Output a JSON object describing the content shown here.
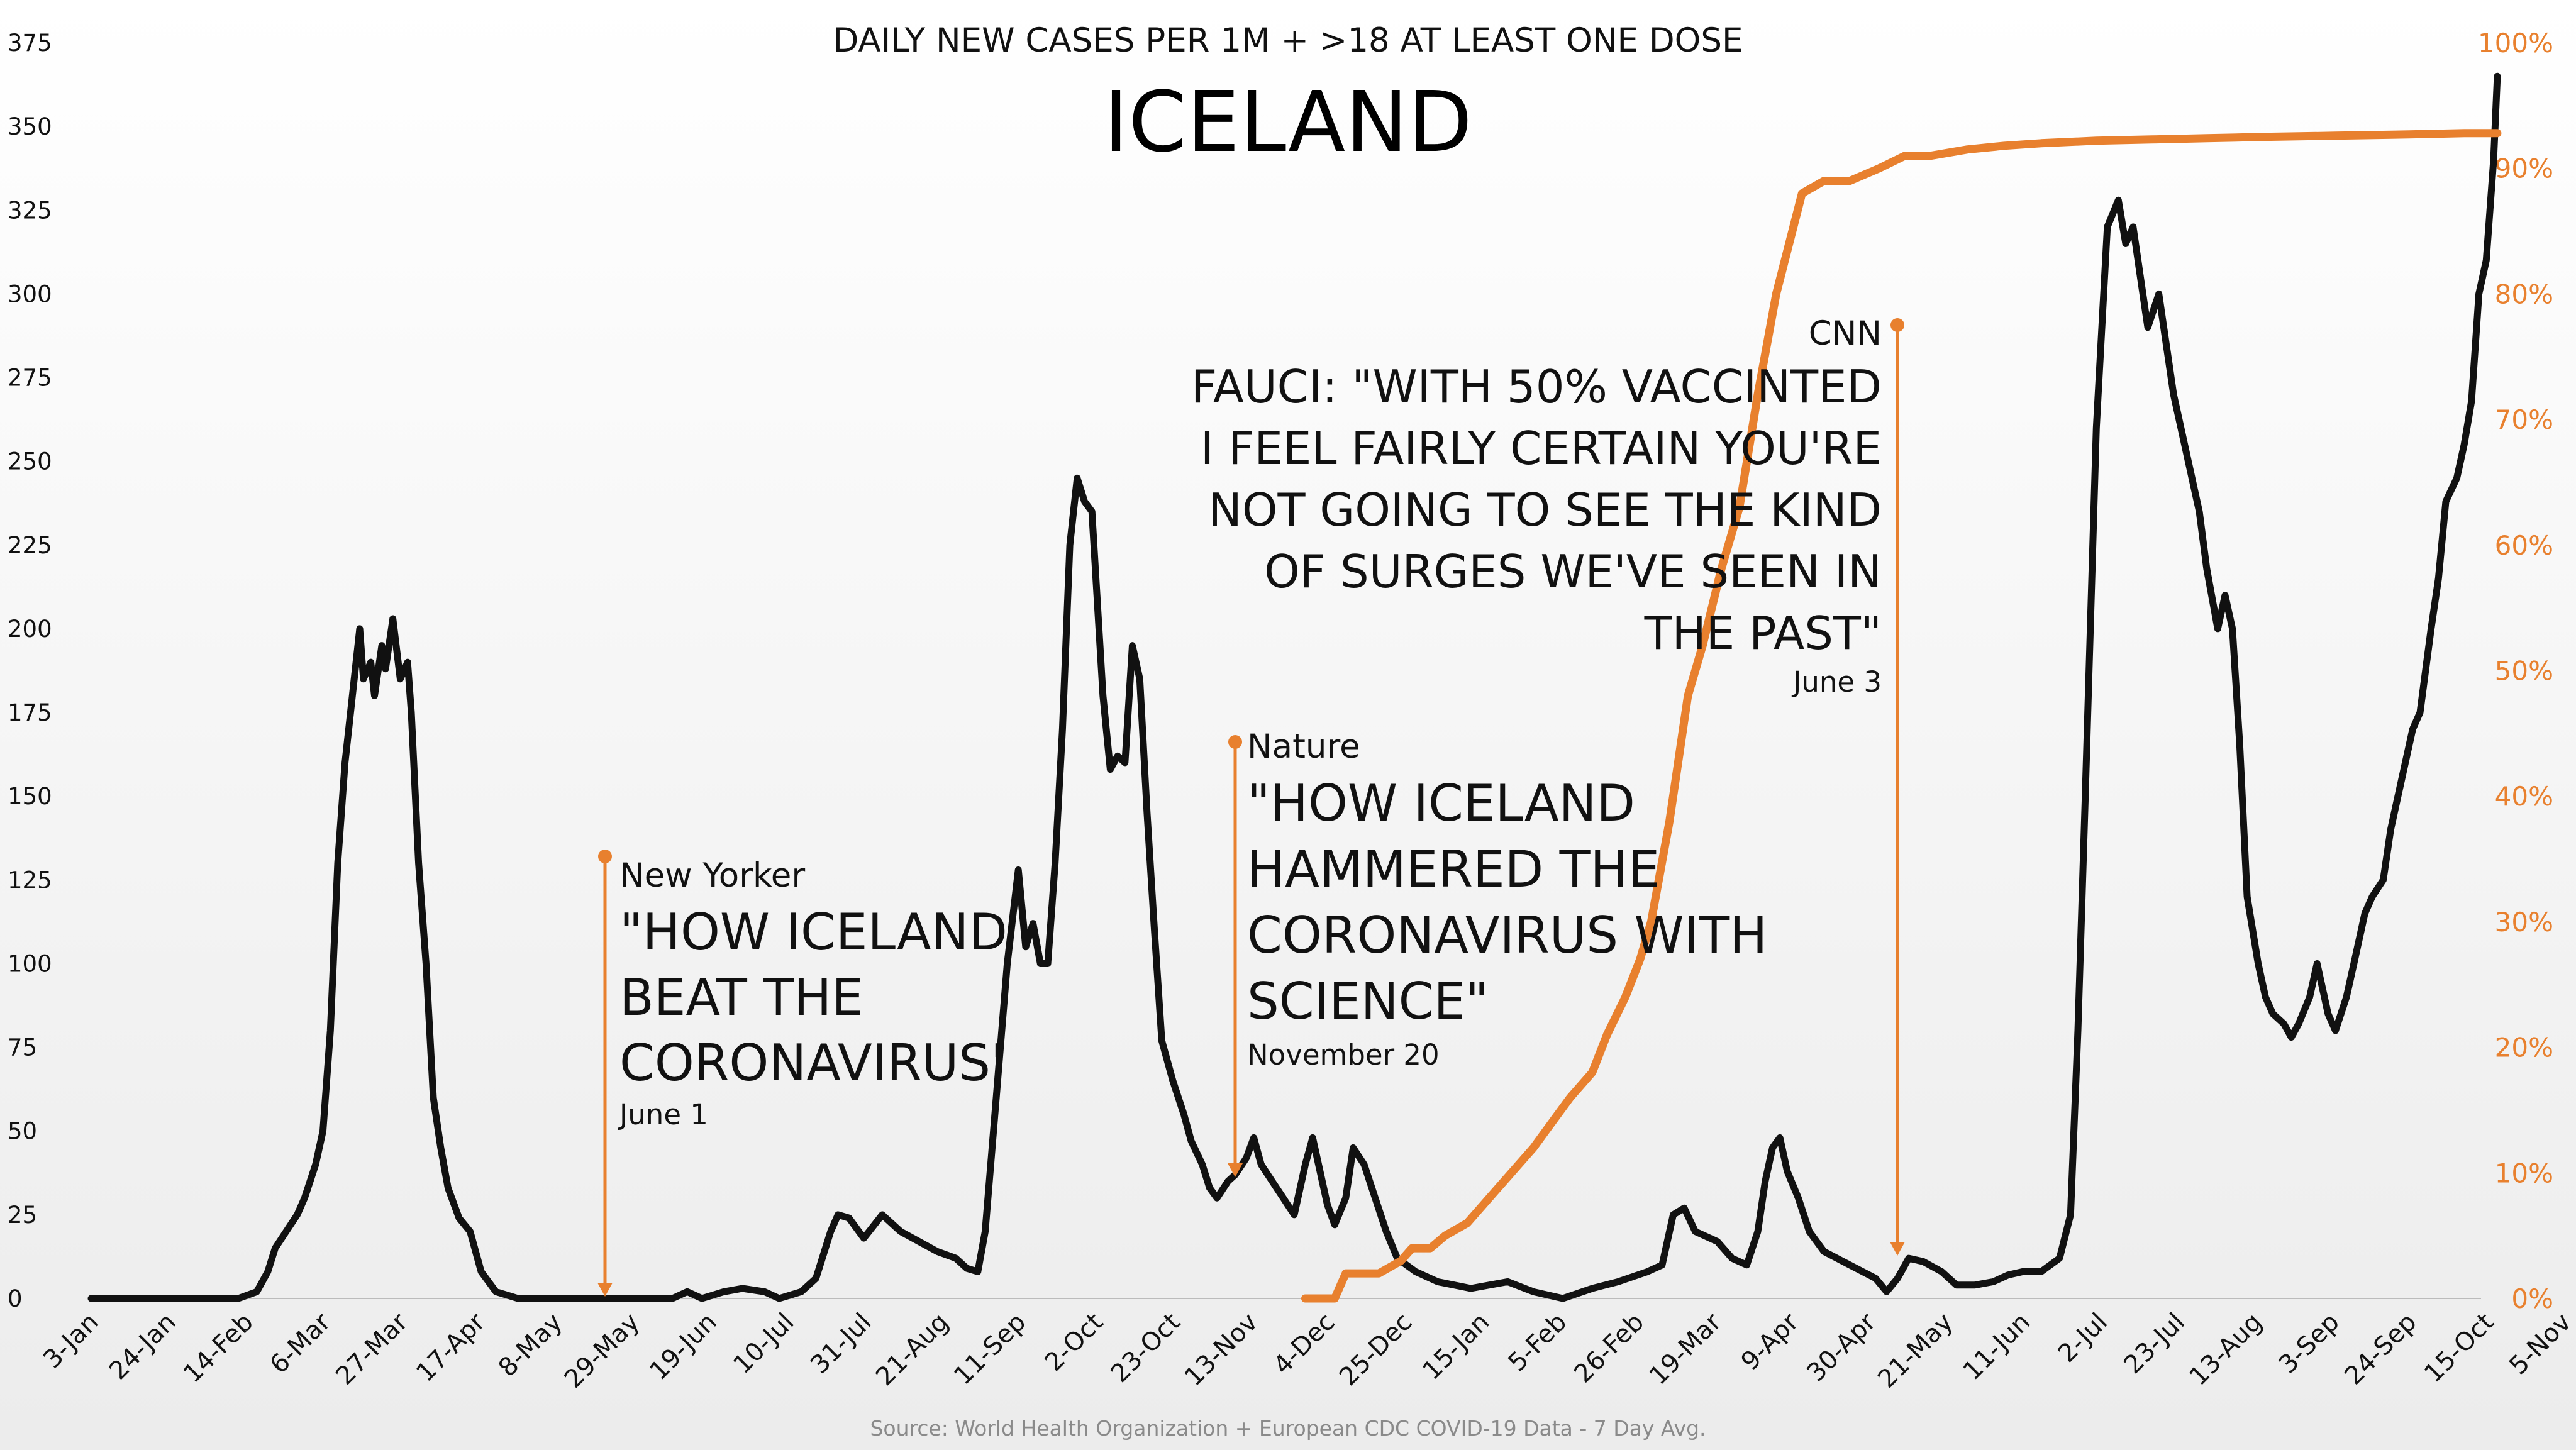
{
  "chart_data": {
    "type": "line",
    "subtitle": "DAILY NEW CASES PER 1M + >18 AT LEAST ONE DOSE",
    "title": "ICELAND",
    "source": "Source: World Health Organization + European CDC COVID-19 Data - 7 Day Avg.",
    "x_ticks": [
      "3-Jan",
      "24-Jan",
      "14-Feb",
      "6-Mar",
      "27-Mar",
      "17-Apr",
      "8-May",
      "29-May",
      "19-Jun",
      "10-Jul",
      "31-Jul",
      "21-Aug",
      "11-Sep",
      "2-Oct",
      "23-Oct",
      "13-Nov",
      "4-Dec",
      "25-Dec",
      "15-Jan",
      "5-Feb",
      "26-Feb",
      "19-Mar",
      "9-Apr",
      "30-Apr",
      "21-May",
      "11-Jun",
      "2-Jul",
      "23-Jul",
      "13-Aug",
      "3-Sep",
      "24-Sep",
      "15-Oct",
      "5-Nov"
    ],
    "y_left": {
      "min": 0,
      "max": 375,
      "ticks": [
        "0",
        "25",
        "50",
        "75",
        "100",
        "125",
        "150",
        "175",
        "200",
        "225",
        "250",
        "275",
        "300",
        "325",
        "350",
        "375"
      ]
    },
    "y_right": {
      "min": 0,
      "max": 100,
      "ticks": [
        "0%",
        "10%",
        "20%",
        "30%",
        "40%",
        "50%",
        "60%",
        "70%",
        "80%",
        "90%",
        "100%"
      ]
    },
    "series": [
      {
        "axis": "left",
        "color": "#111111",
        "values": [
          [
            0,
            0
          ],
          [
            15,
            0
          ],
          [
            30,
            0
          ],
          [
            40,
            0
          ],
          [
            45,
            2
          ],
          [
            48,
            8
          ],
          [
            50,
            15
          ],
          [
            53,
            20
          ],
          [
            56,
            25
          ],
          [
            58,
            30
          ],
          [
            61,
            40
          ],
          [
            63,
            50
          ],
          [
            65,
            80
          ],
          [
            67,
            130
          ],
          [
            69,
            160
          ],
          [
            71,
            180
          ],
          [
            73,
            200
          ],
          [
            74,
            185
          ],
          [
            76,
            190
          ],
          [
            77,
            180
          ],
          [
            79,
            195
          ],
          [
            80,
            188
          ],
          [
            82,
            203
          ],
          [
            84,
            185
          ],
          [
            86,
            190
          ],
          [
            87,
            175
          ],
          [
            89,
            130
          ],
          [
            91,
            100
          ],
          [
            93,
            60
          ],
          [
            95,
            45
          ],
          [
            97,
            33
          ],
          [
            100,
            24
          ],
          [
            103,
            20
          ],
          [
            106,
            8
          ],
          [
            110,
            2
          ],
          [
            116,
            0
          ],
          [
            125,
            0
          ],
          [
            150,
            0
          ],
          [
            158,
            0
          ],
          [
            162,
            2
          ],
          [
            166,
            0
          ],
          [
            172,
            2
          ],
          [
            177,
            3
          ],
          [
            183,
            2
          ],
          [
            187,
            0
          ],
          [
            193,
            2
          ],
          [
            197,
            6
          ],
          [
            201,
            20
          ],
          [
            203,
            25
          ],
          [
            206,
            24
          ],
          [
            210,
            18
          ],
          [
            215,
            25
          ],
          [
            220,
            20
          ],
          [
            225,
            17
          ],
          [
            230,
            14
          ],
          [
            235,
            12
          ],
          [
            238,
            9
          ],
          [
            241,
            8
          ],
          [
            243,
            20
          ],
          [
            246,
            60
          ],
          [
            249,
            100
          ],
          [
            252,
            128
          ],
          [
            254,
            105
          ],
          [
            256,
            112
          ],
          [
            258,
            100
          ],
          [
            260,
            100
          ],
          [
            262,
            130
          ],
          [
            264,
            170
          ],
          [
            266,
            225
          ],
          [
            268,
            245
          ],
          [
            270,
            238
          ],
          [
            272,
            235
          ],
          [
            275,
            180
          ],
          [
            277,
            158
          ],
          [
            279,
            162
          ],
          [
            281,
            160
          ],
          [
            283,
            195
          ],
          [
            285,
            185
          ],
          [
            287,
            145
          ],
          [
            289,
            110
          ],
          [
            291,
            77
          ],
          [
            294,
            65
          ],
          [
            297,
            55
          ],
          [
            299,
            47
          ],
          [
            302,
            40
          ],
          [
            304,
            33
          ],
          [
            306,
            30
          ],
          [
            309,
            35
          ],
          [
            311,
            37
          ],
          [
            314,
            42
          ],
          [
            316,
            48
          ],
          [
            318,
            40
          ],
          [
            321,
            35
          ],
          [
            324,
            30
          ],
          [
            327,
            25
          ],
          [
            330,
            40
          ],
          [
            332,
            48
          ],
          [
            334,
            38
          ],
          [
            336,
            28
          ],
          [
            338,
            22
          ],
          [
            341,
            30
          ],
          [
            343,
            45
          ],
          [
            346,
            40
          ],
          [
            349,
            30
          ],
          [
            352,
            20
          ],
          [
            355,
            12
          ],
          [
            360,
            8
          ],
          [
            366,
            5
          ],
          [
            375,
            3
          ],
          [
            385,
            5
          ],
          [
            392,
            2
          ],
          [
            400,
            0
          ],
          [
            408,
            3
          ],
          [
            415,
            5
          ],
          [
            423,
            8
          ],
          [
            427,
            10
          ],
          [
            430,
            25
          ],
          [
            433,
            27
          ],
          [
            436,
            20
          ],
          [
            442,
            17
          ],
          [
            446,
            12
          ],
          [
            450,
            10
          ],
          [
            453,
            20
          ],
          [
            455,
            35
          ],
          [
            457,
            45
          ],
          [
            459,
            48
          ],
          [
            461,
            38
          ],
          [
            464,
            30
          ],
          [
            467,
            20
          ],
          [
            471,
            14
          ],
          [
            478,
            10
          ],
          [
            485,
            6
          ],
          [
            488,
            2
          ],
          [
            491,
            6
          ],
          [
            494,
            12
          ],
          [
            498,
            11
          ],
          [
            503,
            8
          ],
          [
            507,
            4
          ],
          [
            512,
            4
          ],
          [
            517,
            5
          ],
          [
            521,
            7
          ],
          [
            525,
            8
          ],
          [
            530,
            8
          ],
          [
            535,
            12
          ],
          [
            538,
            25
          ],
          [
            540,
            80
          ],
          [
            542,
            150
          ],
          [
            545,
            260
          ],
          [
            548,
            320
          ],
          [
            551,
            328
          ],
          [
            553,
            315
          ],
          [
            555,
            320
          ],
          [
            557,
            305
          ],
          [
            559,
            290
          ],
          [
            562,
            300
          ],
          [
            564,
            285
          ],
          [
            566,
            270
          ],
          [
            568,
            260
          ],
          [
            570,
            250
          ],
          [
            573,
            235
          ],
          [
            575,
            218
          ],
          [
            578,
            200
          ],
          [
            580,
            210
          ],
          [
            582,
            200
          ],
          [
            584,
            165
          ],
          [
            586,
            120
          ],
          [
            589,
            100
          ],
          [
            591,
            90
          ],
          [
            593,
            85
          ],
          [
            596,
            82
          ],
          [
            598,
            78
          ],
          [
            600,
            82
          ],
          [
            603,
            90
          ],
          [
            605,
            100
          ],
          [
            608,
            85
          ],
          [
            610,
            80
          ],
          [
            613,
            90
          ],
          [
            615,
            100
          ],
          [
            618,
            115
          ],
          [
            620,
            120
          ],
          [
            623,
            125
          ],
          [
            625,
            140
          ],
          [
            627,
            150
          ],
          [
            629,
            160
          ],
          [
            631,
            170
          ],
          [
            633,
            175
          ],
          [
            636,
            200
          ],
          [
            638,
            215
          ],
          [
            640,
            238
          ],
          [
            643,
            245
          ],
          [
            645,
            255
          ],
          [
            647,
            268
          ],
          [
            649,
            300
          ],
          [
            651,
            310
          ],
          [
            653,
            340
          ],
          [
            654,
            365
          ]
        ]
      },
      {
        "axis": "right",
        "color": "#e8802e",
        "values": [
          [
            330,
            0
          ],
          [
            338,
            0
          ],
          [
            341,
            2
          ],
          [
            350,
            2
          ],
          [
            356,
            3
          ],
          [
            359,
            4
          ],
          [
            364,
            4
          ],
          [
            368,
            5
          ],
          [
            374,
            6
          ],
          [
            380,
            8
          ],
          [
            386,
            10
          ],
          [
            392,
            12
          ],
          [
            397,
            14
          ],
          [
            402,
            16
          ],
          [
            408,
            18
          ],
          [
            412,
            21
          ],
          [
            417,
            24
          ],
          [
            421,
            27
          ],
          [
            424,
            30
          ],
          [
            429,
            38
          ],
          [
            434,
            48
          ],
          [
            438,
            52
          ],
          [
            443,
            58
          ],
          [
            448,
            63
          ],
          [
            453,
            72
          ],
          [
            458,
            80
          ],
          [
            465,
            88
          ],
          [
            471,
            89
          ],
          [
            478,
            89
          ],
          [
            486,
            90
          ],
          [
            493,
            91
          ],
          [
            500,
            91
          ],
          [
            510,
            91.5
          ],
          [
            520,
            91.8
          ],
          [
            530,
            92
          ],
          [
            545,
            92.2
          ],
          [
            560,
            92.3
          ],
          [
            575,
            92.4
          ],
          [
            590,
            92.5
          ],
          [
            610,
            92.6
          ],
          [
            630,
            92.7
          ],
          [
            645,
            92.8
          ],
          [
            654,
            92.8
          ]
        ]
      }
    ],
    "annotations": [
      {
        "source": "New Yorker",
        "headline": [
          "\"HOW ICELAND",
          "BEAT THE",
          "CORONAVIRUS'"
        ],
        "date": "June 1"
      },
      {
        "source": "Nature",
        "headline": [
          "\"HOW ICELAND",
          "HAMMERED THE",
          "CORONAVIRUS WITH",
          "SCIENCE\""
        ],
        "date": "November 20"
      },
      {
        "source": "CNN",
        "headline": [
          "FAUCI: \"WITH 50% VACCINTED",
          "I FEEL FAIRLY CERTAIN YOU'RE",
          "NOT GOING TO SEE THE KIND",
          "OF SURGES WE'VE SEEN IN",
          "THE PAST\""
        ],
        "date": "June 3"
      }
    ]
  }
}
